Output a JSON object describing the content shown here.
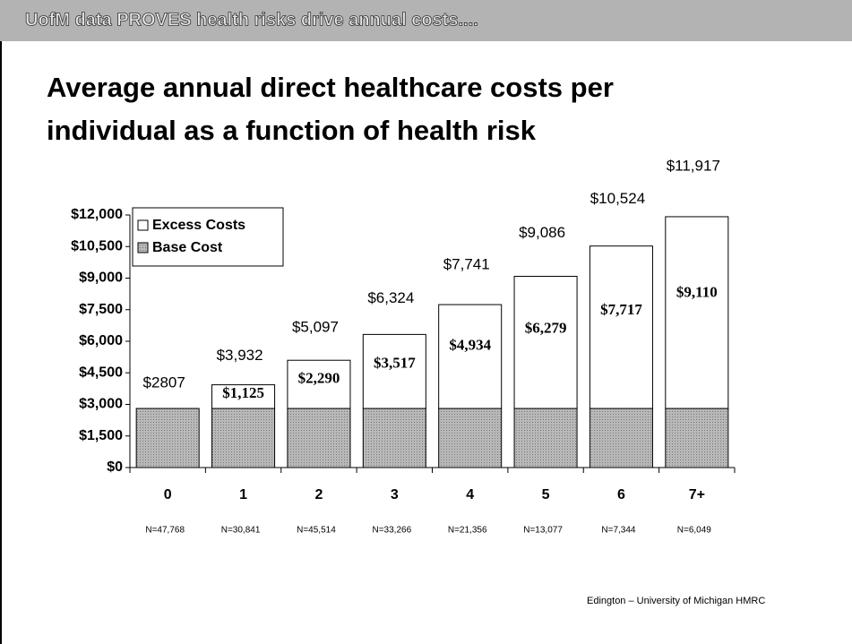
{
  "chart_data": {
    "type": "stacked_bar",
    "header": "UofM data PROVES health risks drive annual costs....",
    "title": [
      "Average annual direct healthcare costs per",
      "individual as a function of health risk"
    ],
    "categories": [
      "0",
      "1",
      "2",
      "3",
      "4",
      "5",
      "6",
      "7+"
    ],
    "category_notes": [
      "N=47,768",
      "N=30,841",
      "N=45,514",
      "N=33,266",
      "N=21,356",
      "N=13,077",
      "N=7,344",
      "N=6,049"
    ],
    "series": [
      {
        "name": "Base Cost",
        "color": "#aaaaaa",
        "values": [
          2807,
          2807,
          2807,
          2807,
          2807,
          2807,
          2807,
          2807
        ]
      },
      {
        "name": "Excess Costs",
        "color": "#ffffff",
        "values": [
          null,
          1125,
          2290,
          3517,
          4934,
          6279,
          7717,
          9110
        ],
        "value_labels": [
          null,
          "$1,125",
          "$2,290",
          "$3,517",
          "$4,934",
          "$6,279",
          "$7,717",
          "$9,110"
        ]
      }
    ],
    "totals": [
      2807,
      3932,
      5097,
      6324,
      7741,
      9086,
      10524,
      11917
    ],
    "total_labels": [
      "$2807",
      "$3,932",
      "$5,097",
      "$6,324",
      "$7,741",
      "$9,086",
      "$10,524",
      "$11,917"
    ],
    "ylim": [
      0,
      12000
    ],
    "yticks": [
      {
        "value": 0,
        "label": "$0"
      },
      {
        "value": 1500,
        "label": "$1,500"
      },
      {
        "value": 3000,
        "label": "$3,000"
      },
      {
        "value": 4500,
        "label": "$4,500"
      },
      {
        "value": 6000,
        "label": "$6,000"
      },
      {
        "value": 7500,
        "label": "$7,500"
      },
      {
        "value": 9000,
        "label": "$9,000"
      },
      {
        "value": 10500,
        "label": "$10,500"
      },
      {
        "value": 12000,
        "label": "$12,000"
      }
    ],
    "legend": "top-left",
    "source": "Edington – University of Michigan HMRC"
  }
}
